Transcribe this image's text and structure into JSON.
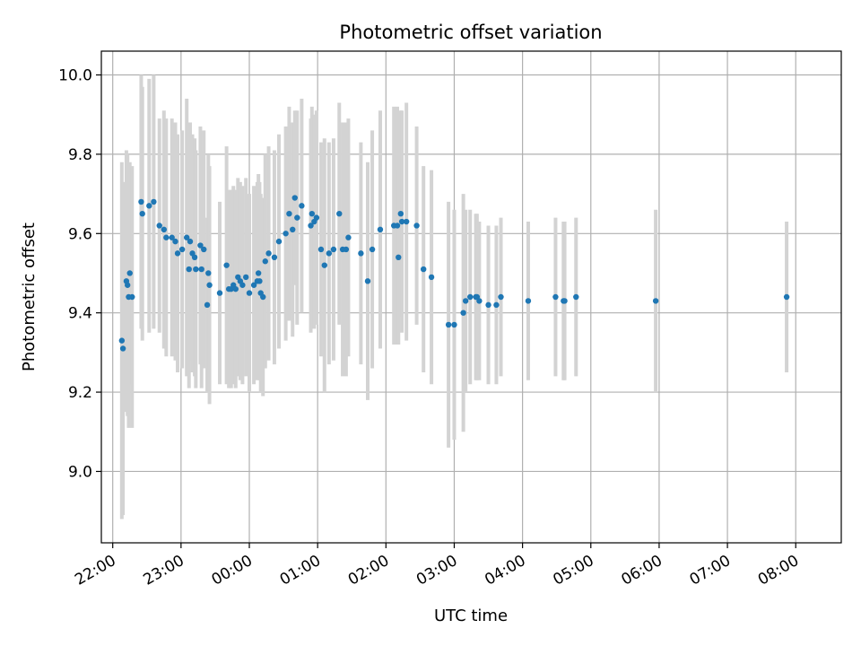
{
  "chart_data": {
    "type": "scatter",
    "title": "Photometric offset variation",
    "xlabel": "UTC time",
    "ylabel": "Photometric offset",
    "grid": true,
    "xlim": [
      "21:50",
      "32:40"
    ],
    "ylim": [
      8.82,
      10.06
    ],
    "x_ticks": [
      "22:00",
      "23:00",
      "00:00",
      "01:00",
      "02:00",
      "03:00",
      "04:00",
      "05:00",
      "06:00",
      "07:00",
      "08:00"
    ],
    "y_ticks": [
      9.0,
      9.2,
      9.4,
      9.6,
      9.8,
      10.0
    ],
    "y_tick_labels": [
      "9.0",
      "9.2",
      "9.4",
      "9.6",
      "9.8",
      "10.0"
    ],
    "colors": {
      "points": "#1f77b4",
      "errorbars": "#d3d3d3",
      "grid": "#b0b0b0"
    },
    "series": [
      {
        "x": [
          "22:08",
          "22:09",
          "22:12",
          "22:13",
          "22:14",
          "22:15",
          "22:17",
          "22:25",
          "22:26",
          "22:32",
          "22:36",
          "22:41",
          "22:45",
          "22:47",
          "22:52",
          "22:55",
          "22:57",
          "23:01",
          "23:05",
          "23:07",
          "23:08",
          "23:10",
          "23:12",
          "23:13",
          "23:17",
          "23:18",
          "23:20",
          "23:23",
          "23:24",
          "23:25",
          "23:34",
          "23:40",
          "23:42",
          "23:44",
          "23:46",
          "23:48",
          "23:50",
          "23:52",
          "23:54",
          "23:57",
          "00:00",
          "00:04",
          "00:07",
          "00:08",
          "00:09",
          "00:10",
          "00:12",
          "00:14",
          "00:17",
          "00:22",
          "00:26",
          "00:32",
          "00:35",
          "00:38",
          "00:40",
          "00:42",
          "00:46",
          "00:54",
          "00:55",
          "00:57",
          "00:59",
          "01:03",
          "01:06",
          "01:10",
          "01:14",
          "01:19",
          "01:22",
          "01:25",
          "01:27",
          "01:38",
          "01:44",
          "01:48",
          "01:55",
          "02:07",
          "02:10",
          "02:11",
          "02:13",
          "02:14",
          "02:18",
          "02:27",
          "02:33",
          "02:40",
          "02:55",
          "03:00",
          "03:08",
          "03:10",
          "03:14",
          "03:19",
          "03:20",
          "03:22",
          "03:30",
          "03:37",
          "03:41",
          "04:05",
          "04:29",
          "04:36",
          "04:37",
          "04:47",
          "05:57",
          "07:52"
        ],
        "y": [
          9.33,
          9.31,
          9.48,
          9.47,
          9.44,
          9.5,
          9.44,
          9.68,
          9.65,
          9.67,
          9.68,
          9.62,
          9.61,
          9.59,
          9.59,
          9.58,
          9.55,
          9.56,
          9.59,
          9.51,
          9.58,
          9.55,
          9.54,
          9.51,
          9.57,
          9.51,
          9.56,
          9.42,
          9.5,
          9.47,
          9.45,
          9.52,
          9.46,
          9.46,
          9.47,
          9.46,
          9.49,
          9.48,
          9.47,
          9.49,
          9.45,
          9.47,
          9.48,
          9.5,
          9.48,
          9.45,
          9.44,
          9.53,
          9.55,
          9.54,
          9.58,
          9.6,
          9.65,
          9.61,
          9.69,
          9.64,
          9.67,
          9.62,
          9.65,
          9.63,
          9.64,
          9.56,
          9.52,
          9.55,
          9.56,
          9.65,
          9.56,
          9.56,
          9.59,
          9.55,
          9.48,
          9.56,
          9.61,
          9.62,
          9.62,
          9.54,
          9.65,
          9.63,
          9.63,
          9.62,
          9.51,
          9.49,
          9.37,
          9.37,
          9.4,
          9.43,
          9.44,
          9.44,
          9.44,
          9.43,
          9.42,
          9.42,
          9.44,
          9.43,
          9.44,
          9.43,
          9.43,
          9.44,
          9.43,
          9.44
        ],
        "err": [
          0.45,
          0.42,
          0.33,
          0.33,
          0.33,
          0.28,
          0.33,
          0.32,
          0.32,
          0.32,
          0.32,
          0.27,
          0.3,
          0.3,
          0.3,
          0.3,
          0.3,
          0.3,
          0.35,
          0.3,
          0.3,
          0.3,
          0.3,
          0.3,
          0.3,
          0.3,
          0.3,
          0.22,
          0.3,
          0.3,
          0.23,
          0.3,
          0.25,
          0.25,
          0.25,
          0.25,
          0.25,
          0.25,
          0.25,
          0.25,
          0.25,
          0.25,
          0.25,
          0.25,
          0.25,
          0.25,
          0.25,
          0.27,
          0.27,
          0.27,
          0.27,
          0.27,
          0.27,
          0.27,
          0.22,
          0.27,
          0.27,
          0.27,
          0.27,
          0.27,
          0.27,
          0.27,
          0.32,
          0.28,
          0.28,
          0.28,
          0.32,
          0.32,
          0.3,
          0.28,
          0.3,
          0.3,
          0.3,
          0.3,
          0.3,
          0.22,
          0.26,
          0.28,
          0.3,
          0.25,
          0.26,
          0.27,
          0.31,
          0.29,
          0.3,
          0.23,
          0.22,
          0.21,
          0.21,
          0.2,
          0.2,
          0.2,
          0.2,
          0.2,
          0.2,
          0.2,
          0.2,
          0.2,
          0.23,
          0.19
        ]
      }
    ]
  }
}
